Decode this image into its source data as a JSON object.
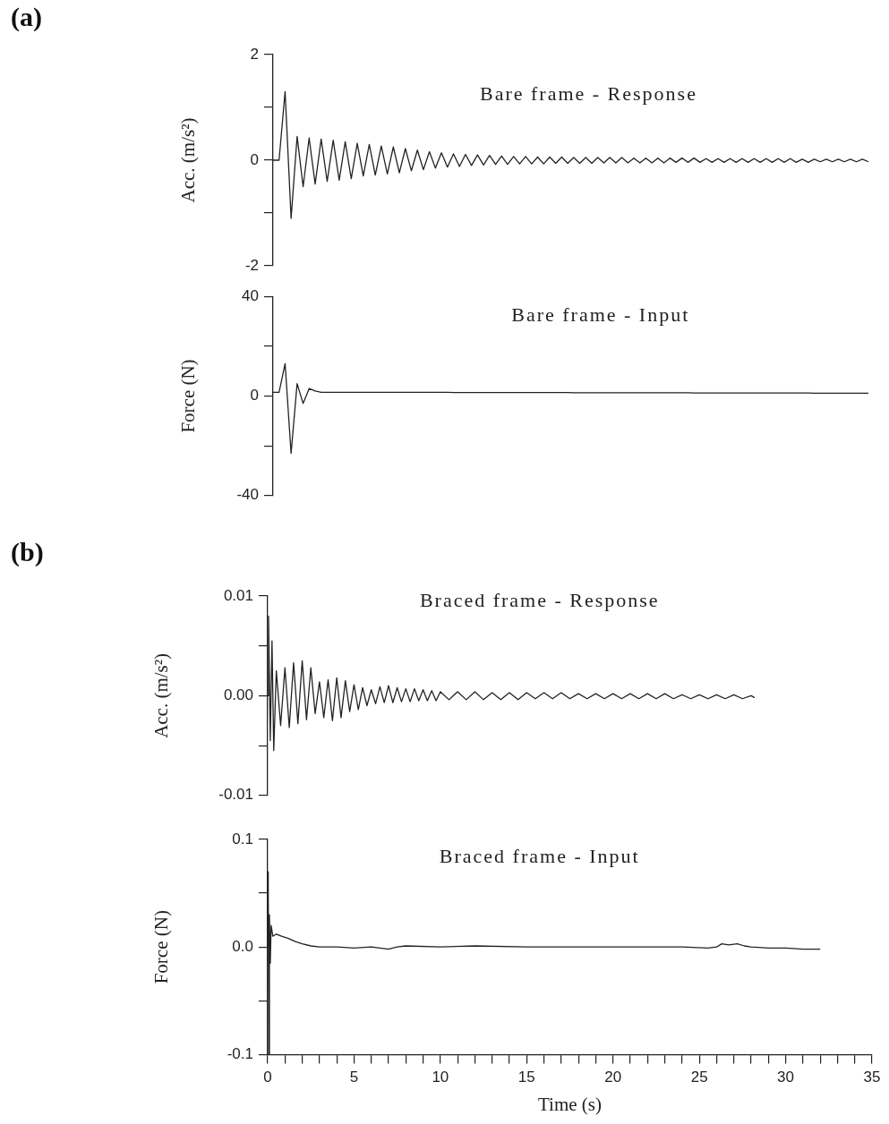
{
  "chart_data": [
    {
      "type": "line",
      "title": "Bare frame - Response",
      "ylabel": "Acc. (m/s²)",
      "annotations": [
        "(a)"
      ],
      "tick_labels": "y",
      "categories": [
        null,
        null,
        null,
        null,
        null,
        null,
        null,
        null,
        null,
        null,
        null,
        null,
        null,
        null,
        null,
        null,
        null,
        null,
        null,
        null,
        null,
        null,
        null,
        null,
        null,
        null,
        null,
        null,
        null,
        null,
        null,
        null,
        null,
        null,
        null,
        null,
        null,
        null,
        null,
        null,
        null,
        null,
        null,
        null,
        null,
        null,
        null,
        null,
        null,
        null,
        null,
        null,
        null,
        null,
        null,
        null,
        null,
        null,
        null,
        null,
        null,
        null,
        null,
        null,
        null,
        null,
        null,
        null,
        null,
        null,
        null,
        null,
        null,
        null,
        null,
        null,
        null,
        null,
        null,
        null,
        null,
        null,
        null,
        null,
        null,
        null,
        null,
        null,
        null,
        null,
        null,
        null,
        null,
        null,
        null,
        null,
        null,
        null,
        null,
        null
      ],
      "series": [
        {
          "color": "#222222",
          "values": [
            0,
            0,
            1.3,
            -1.1,
            0.45,
            -0.5,
            0.42,
            -0.45,
            0.4,
            -0.4,
            0.38,
            -0.38,
            0.35,
            -0.35,
            0.32,
            -0.3,
            0.3,
            -0.28,
            0.27,
            -0.26,
            0.25,
            -0.24,
            0.22,
            -0.2,
            0.19,
            -0.18,
            0.16,
            -0.15,
            0.14,
            -0.13,
            0.12,
            -0.12,
            0.11,
            -0.1,
            0.1,
            -0.09,
            0.09,
            -0.08,
            0.08,
            -0.08,
            0.07,
            -0.07,
            0.07,
            -0.07,
            0.06,
            -0.07,
            0.06,
            -0.06,
            0.06,
            -0.06,
            0.05,
            -0.06,
            0.05,
            -0.06,
            0.05,
            -0.05,
            0.05,
            -0.05,
            0.05,
            -0.05,
            0.04,
            -0.05,
            0.04,
            -0.05,
            0.04,
            -0.05,
            0.04,
            -0.04,
            0.04,
            -0.04,
            0.04,
            -0.04,
            0.03,
            -0.04,
            0.03,
            -0.04,
            0.03,
            -0.04,
            0.03,
            -0.04,
            0.03,
            -0.04,
            0.03,
            -0.04,
            0.03,
            -0.04,
            0.03,
            -0.04,
            0.02,
            -0.04,
            0.02,
            -0.03,
            0.02,
            -0.03,
            0.02,
            -0.03,
            0.02,
            -0.03,
            0.02,
            -0.03
          ]
        }
      ],
      "ylim": [
        -2,
        2
      ],
      "yticks": [
        -2,
        {
          "value": -1,
          "label": null
        },
        0,
        {
          "value": 1,
          "label": null
        },
        2
      ],
      "grid": false,
      "legend": false
    },
    {
      "type": "line",
      "title": "Bare frame - Input",
      "ylabel": "Force (N)",
      "tick_labels": "y",
      "categories": [
        null,
        null,
        null,
        null,
        null,
        null,
        null,
        null,
        null,
        null,
        null,
        null,
        null,
        null,
        null,
        null,
        null,
        null,
        null,
        null,
        null,
        null,
        null,
        null,
        null,
        null,
        null,
        null,
        null,
        null,
        null,
        null,
        null,
        null,
        null,
        null,
        null,
        null,
        null,
        null,
        null,
        null,
        null,
        null,
        null,
        null,
        null,
        null,
        null,
        null,
        null,
        null,
        null,
        null,
        null,
        null,
        null,
        null,
        null,
        null,
        null,
        null,
        null,
        null,
        null,
        null,
        null,
        null,
        null,
        null,
        null,
        null,
        null,
        null,
        null,
        null,
        null,
        null,
        null,
        null,
        null,
        null,
        null,
        null,
        null,
        null,
        null,
        null,
        null,
        null,
        null,
        null,
        null,
        null,
        null,
        null,
        null,
        null,
        null,
        null
      ],
      "series": [
        {
          "color": "#222222",
          "values": [
            1.5,
            1.5,
            13,
            -23,
            5,
            -3,
            3,
            2,
            1.5,
            1.5,
            1.5,
            1.5,
            1.5,
            1.5,
            1.5,
            1.5,
            1.5,
            1.5,
            1.5,
            1.5,
            1.5,
            1.5,
            1.5,
            1.5,
            1.5,
            1.5,
            1.5,
            1.5,
            1.5,
            1.5,
            1.4,
            1.4,
            1.4,
            1.4,
            1.4,
            1.4,
            1.4,
            1.4,
            1.4,
            1.4,
            1.4,
            1.4,
            1.4,
            1.4,
            1.4,
            1.4,
            1.4,
            1.4,
            1.4,
            1.4,
            1.3,
            1.3,
            1.3,
            1.3,
            1.3,
            1.3,
            1.3,
            1.3,
            1.3,
            1.3,
            1.3,
            1.3,
            1.3,
            1.3,
            1.3,
            1.3,
            1.3,
            1.3,
            1.3,
            1.3,
            1.2,
            1.2,
            1.2,
            1.2,
            1.2,
            1.2,
            1.2,
            1.2,
            1.2,
            1.2,
            1.2,
            1.2,
            1.2,
            1.2,
            1.2,
            1.2,
            1.2,
            1.2,
            1.2,
            1.2,
            1.1,
            1.1,
            1.1,
            1.1,
            1.1,
            1.1,
            1.1,
            1.1,
            1.1,
            1.1
          ]
        }
      ],
      "ylim": [
        -40,
        40
      ],
      "yticks": [
        -40,
        {
          "value": -20,
          "label": null
        },
        0,
        {
          "value": 20,
          "label": null
        },
        40
      ],
      "grid": false,
      "legend": false
    },
    {
      "type": "line",
      "title": "Braced frame - Response",
      "ylabel": "Acc. (m/s²)",
      "annotations": [
        "(b)"
      ],
      "tick_labels": "y",
      "xlim": [
        0,
        35
      ],
      "x": [
        0,
        0.05,
        0.15,
        0.25,
        0.35,
        0.5,
        0.75,
        1,
        1.25,
        1.5,
        1.75,
        2,
        2.25,
        2.5,
        2.75,
        3,
        3.25,
        3.5,
        3.75,
        4,
        4.25,
        4.5,
        4.75,
        5,
        5.25,
        5.5,
        5.75,
        6,
        6.25,
        6.5,
        6.75,
        7,
        7.25,
        7.5,
        7.75,
        8,
        8.25,
        8.5,
        8.75,
        9,
        9.25,
        9.5,
        9.75,
        10,
        10.5,
        11,
        11.5,
        12,
        12.5,
        13,
        13.5,
        14,
        14.5,
        15,
        15.5,
        16,
        16.5,
        17,
        17.5,
        18,
        18.5,
        19,
        19.5,
        20,
        20.5,
        21,
        21.5,
        22,
        22.5,
        23,
        23.5,
        24,
        24.5,
        25,
        25.5,
        26,
        26.5,
        27,
        27.5,
        28,
        28.2
      ],
      "series": [
        {
          "color": "#222222",
          "values": [
            0,
            0.008,
            -0.0045,
            0.0055,
            -0.0055,
            0.0025,
            -0.003,
            0.0028,
            -0.0032,
            0.0033,
            -0.0028,
            0.0035,
            -0.0024,
            0.0028,
            -0.0018,
            0.0014,
            -0.0022,
            0.0016,
            -0.0025,
            0.0018,
            -0.0022,
            0.0015,
            -0.0016,
            0.0011,
            -0.0014,
            0.0008,
            -0.001,
            0.0006,
            -0.0008,
            0.0009,
            -0.0007,
            0.001,
            -0.0007,
            0.0008,
            -0.0006,
            0.0007,
            -0.0006,
            0.0007,
            -0.0005,
            0.0006,
            -0.0005,
            0.0005,
            -0.0005,
            0.0004,
            -0.0004,
            0.0004,
            -0.0004,
            0.0004,
            -0.0004,
            0.0003,
            -0.0004,
            0.0003,
            -0.0004,
            0.0003,
            -0.0003,
            0.0003,
            -0.0003,
            0.0003,
            -0.0003,
            0.0002,
            -0.0003,
            0.0002,
            -0.0003,
            0.0002,
            -0.0003,
            0.0002,
            -0.0003,
            0.0002,
            -0.0003,
            0.0002,
            -0.0003,
            0.0001,
            -0.0003,
            0.0001,
            -0.0003,
            0.0001,
            -0.0003,
            0.0001,
            -0.0003,
            0,
            -0.0002
          ]
        }
      ],
      "ylim": [
        -0.01,
        0.01
      ],
      "yticks": [
        -0.01,
        {
          "value": -0.005,
          "label": null
        },
        {
          "value": 0,
          "label": "0.00"
        },
        {
          "value": 0.005,
          "label": null
        },
        0.01
      ],
      "grid": false,
      "legend": false
    },
    {
      "type": "line",
      "title": "Braced frame - Input",
      "xlabel": "Time (s)",
      "ylabel": "Force (N)",
      "xlim": [
        0,
        35
      ],
      "xticks": [
        0,
        {
          "value": 1,
          "label": null
        },
        {
          "value": 2,
          "label": null
        },
        {
          "value": 3,
          "label": null
        },
        {
          "value": 4,
          "label": null
        },
        5,
        {
          "value": 6,
          "label": null
        },
        {
          "value": 7,
          "label": null
        },
        {
          "value": 8,
          "label": null
        },
        {
          "value": 9,
          "label": null
        },
        10,
        {
          "value": 11,
          "label": null
        },
        {
          "value": 12,
          "label": null
        },
        {
          "value": 13,
          "label": null
        },
        {
          "value": 14,
          "label": null
        },
        15,
        {
          "value": 16,
          "label": null
        },
        {
          "value": 17,
          "label": null
        },
        {
          "value": 18,
          "label": null
        },
        {
          "value": 19,
          "label": null
        },
        20,
        {
          "value": 21,
          "label": null
        },
        {
          "value": 22,
          "label": null
        },
        {
          "value": 23,
          "label": null
        },
        {
          "value": 24,
          "label": null
        },
        25,
        {
          "value": 26,
          "label": null
        },
        {
          "value": 27,
          "label": null
        },
        {
          "value": 28,
          "label": null
        },
        {
          "value": 29,
          "label": null
        },
        30,
        {
          "value": 31,
          "label": null
        },
        {
          "value": 32,
          "label": null
        },
        {
          "value": 33,
          "label": null
        },
        {
          "value": 34,
          "label": null
        },
        35
      ],
      "x": [
        0,
        0.03,
        0.06,
        0.1,
        0.15,
        0.2,
        0.3,
        0.5,
        0.8,
        1.2,
        1.6,
        2,
        2.5,
        3,
        4,
        5,
        6,
        7,
        7.5,
        8,
        10,
        12,
        15,
        18,
        20,
        22,
        24,
        25.5,
        26,
        26.3,
        26.7,
        27.2,
        27.6,
        28,
        29,
        30,
        31,
        32
      ],
      "series": [
        {
          "color": "#222222",
          "values": [
            0,
            0.07,
            -0.1,
            0.03,
            -0.015,
            0.02,
            0.01,
            0.012,
            0.01,
            0.008,
            0.005,
            0.003,
            0.001,
            0,
            0,
            -0.001,
            0,
            -0.002,
            0,
            0.001,
            0,
            0.001,
            0,
            0,
            0,
            0,
            0,
            -0.001,
            0,
            0.003,
            0.002,
            0.003,
            0.001,
            0,
            -0.001,
            -0.001,
            -0.002,
            -0.002
          ]
        }
      ],
      "ylim": [
        -0.1,
        0.1
      ],
      "yticks": [
        -0.1,
        {
          "value": -0.05,
          "label": null
        },
        {
          "value": 0,
          "label": "0.0"
        },
        {
          "value": 0.05,
          "label": null
        },
        0.1
      ],
      "grid": false,
      "legend": false
    }
  ]
}
